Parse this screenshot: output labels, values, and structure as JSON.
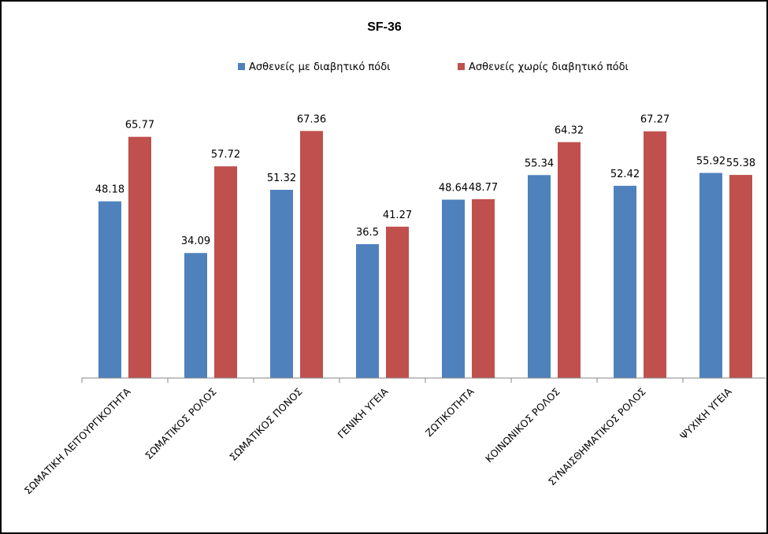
{
  "chart_data": {
    "type": "bar",
    "title": "SF-36",
    "categories": [
      "ΣΩΜΑΤΙΚΗ ΛΕΙΤΟΥΡΓΙΚΟΤΗΤΑ",
      "ΣΩΜΑΤΙΚΟΣ ΡΟΛΟΣ",
      "ΣΩΜΑΤΙΚΟΣ ΠΟΝΟΣ",
      "ΓΕΝΙΚΗ ΥΓΕΙΑ",
      "ΖΩΤΙΚΟΤΗΤΑ",
      "ΚΟΙΝΩΝΙΚΟΣ ΡΟΛΟΣ",
      "ΣΥΝΑΙΣΘΗΜΑΤΙΚΟΣ ΡΟΛΟΣ",
      "ΨΥΧΙΚΗ ΥΓΕΙΑ"
    ],
    "series": [
      {
        "name": "Ασθενείς με διαβητικό πόδι",
        "color": "#4F81BD",
        "values": [
          48.18,
          34.09,
          51.32,
          36.5,
          48.64,
          55.34,
          52.42,
          55.92
        ]
      },
      {
        "name": "Ασθενείς χωρίς διαβητικό πόδι",
        "color": "#C0504D",
        "values": [
          65.77,
          57.72,
          67.36,
          41.27,
          48.77,
          64.32,
          67.27,
          55.38
        ]
      }
    ],
    "value_labels": [
      [
        "48.18",
        "34.09",
        "51.32",
        "36.5",
        "48.64",
        "55.34",
        "52.42",
        "55.92"
      ],
      [
        "65.77",
        "57.72",
        "67.36",
        "41.27",
        "48.77",
        "64.32",
        "67.27",
        "55.38"
      ]
    ],
    "ylim": [
      0,
      100
    ],
    "grid": false,
    "legend_position": "top"
  }
}
